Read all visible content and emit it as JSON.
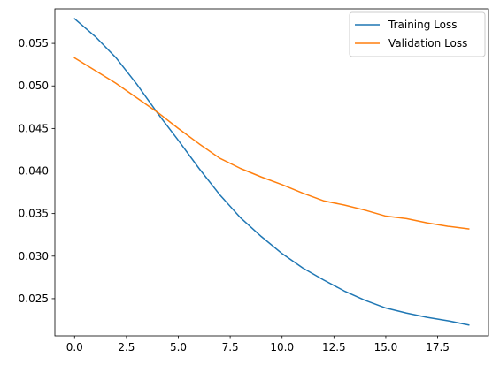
{
  "chart_data": {
    "type": "line",
    "title": "",
    "xlabel": "",
    "ylabel": "",
    "xlim": [
      -0.95,
      19.95
    ],
    "ylim": [
      0.02063,
      0.05906
    ],
    "grid": false,
    "legend_position": "upper-right",
    "x_ticks": [
      0,
      2.5,
      5,
      7.5,
      10,
      12.5,
      15,
      17.5
    ],
    "x_tick_labels": [
      "0.0",
      "2.5",
      "5.0",
      "7.5",
      "10.0",
      "12.5",
      "15.0",
      "17.5"
    ],
    "y_ticks": [
      0.025,
      0.03,
      0.035,
      0.04,
      0.045,
      0.05,
      0.055
    ],
    "y_tick_labels": [
      "0.025",
      "0.030",
      "0.035",
      "0.040",
      "0.045",
      "0.050",
      "0.055"
    ],
    "x": [
      0,
      1,
      2,
      3,
      4,
      5,
      6,
      7,
      8,
      9,
      10,
      11,
      12,
      13,
      14,
      15,
      16,
      17,
      18,
      19
    ],
    "series": [
      {
        "name": "Training Loss",
        "color": "#1f77b4",
        "values": [
          0.0579,
          0.0558,
          0.0533,
          0.0502,
          0.0468,
          0.0436,
          0.0403,
          0.0372,
          0.0345,
          0.0323,
          0.0303,
          0.0286,
          0.0272,
          0.0259,
          0.0248,
          0.0239,
          0.0233,
          0.0228,
          0.0224,
          0.0219
        ]
      },
      {
        "name": "Validation Loss",
        "color": "#ff7f0e",
        "values": [
          0.0533,
          0.0518,
          0.0503,
          0.0486,
          0.0469,
          0.045,
          0.0432,
          0.0415,
          0.0403,
          0.0393,
          0.0384,
          0.0374,
          0.0365,
          0.036,
          0.0354,
          0.0347,
          0.0344,
          0.0339,
          0.0335,
          0.0332
        ]
      }
    ]
  }
}
